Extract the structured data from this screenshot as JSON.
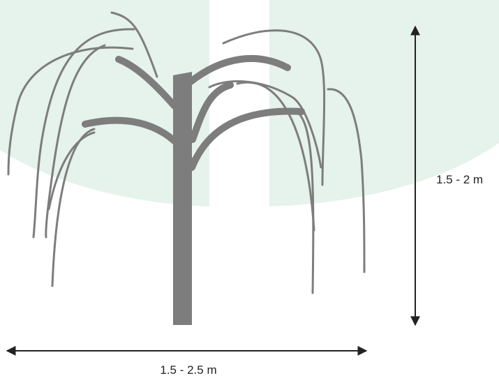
{
  "dimensions": {
    "height_label": "1.5 - 2 m",
    "width_label": "1.5 - 2.5 m"
  }
}
